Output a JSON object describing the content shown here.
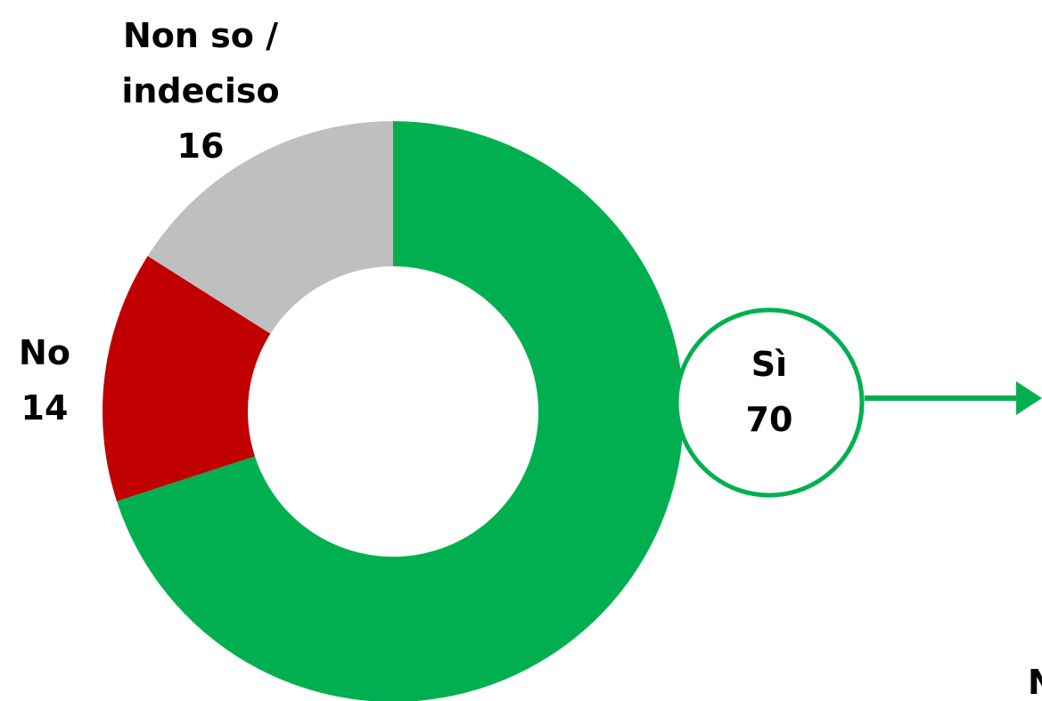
{
  "chart_data": {
    "type": "donut",
    "categories": [
      "Sì",
      "No",
      "Non so / indeciso"
    ],
    "values": [
      70,
      14,
      16
    ],
    "colors": [
      "#00b050",
      "#c00000",
      "#bfbfbf"
    ],
    "annotation": "N"
  }
}
